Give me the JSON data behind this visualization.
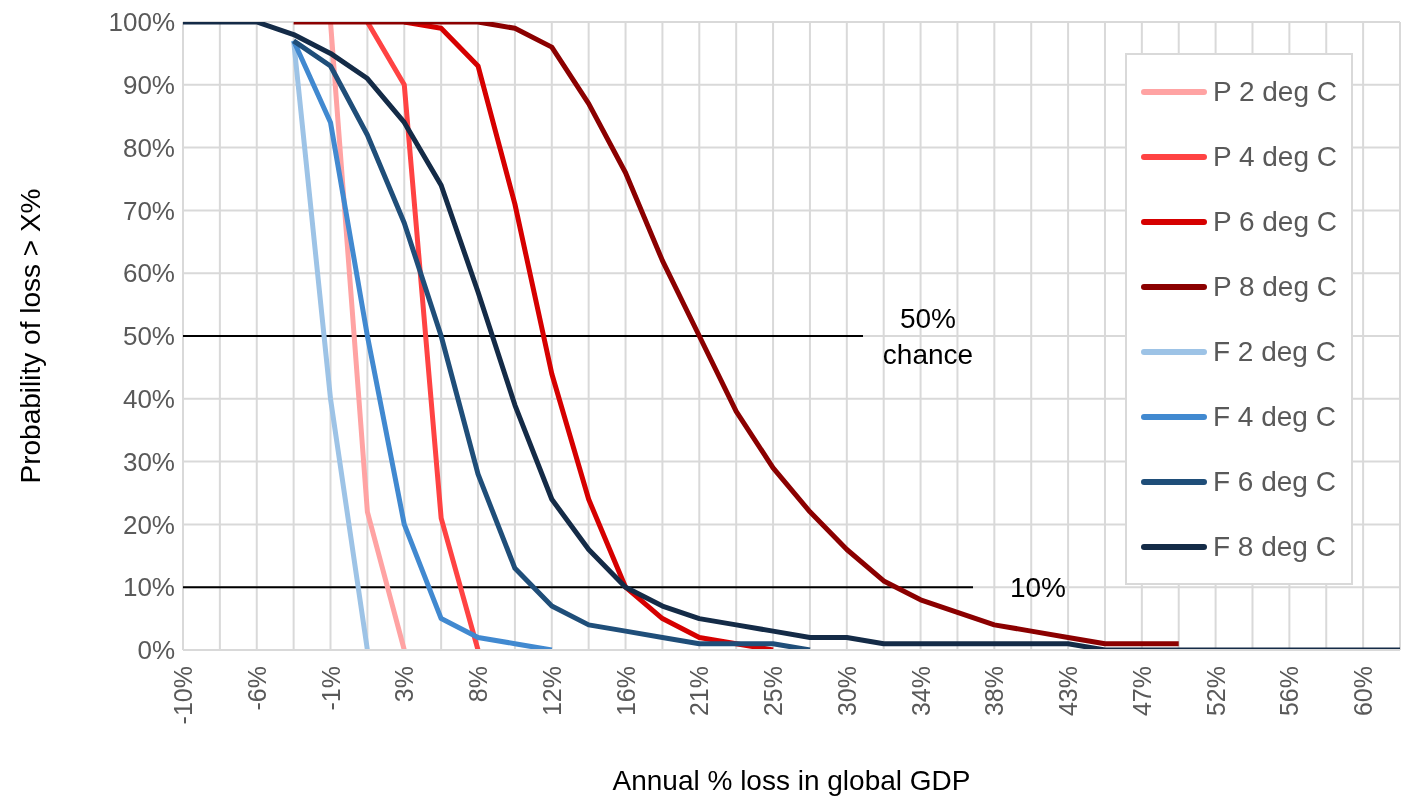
{
  "chart_data": {
    "type": "line",
    "xlabel": "Annual % loss in global GDP",
    "ylabel": "Probability of loss > X%",
    "categories": [
      "-10%",
      null,
      "-6%",
      null,
      "-1%",
      null,
      "3%",
      null,
      "8%",
      null,
      "12%",
      null,
      "16%",
      null,
      "21%",
      null,
      "25%",
      null,
      "30%",
      null,
      "34%",
      null,
      "38%",
      null,
      "43%",
      null,
      "47%",
      null,
      "52%",
      null,
      "56%",
      null,
      "60%",
      null
    ],
    "series": [
      {
        "name": "P 2 deg C",
        "color": "#ffa3a3",
        "values": [
          null,
          null,
          null,
          null,
          100,
          22,
          0,
          null,
          null,
          null,
          null,
          null,
          null,
          null,
          null,
          null,
          null,
          null,
          null,
          null,
          null,
          null,
          null,
          null,
          null,
          null,
          null,
          null,
          null,
          null,
          null,
          null,
          null,
          null
        ]
      },
      {
        "name": "P 4 deg C",
        "color": "#ff4343",
        "values": [
          null,
          null,
          null,
          null,
          null,
          100,
          90,
          21,
          0,
          null,
          null,
          null,
          null,
          null,
          null,
          null,
          null,
          null,
          null,
          null,
          null,
          null,
          null,
          null,
          null,
          null,
          null,
          null,
          null,
          null,
          null,
          null,
          null,
          null
        ]
      },
      {
        "name": "P 6 deg C",
        "color": "#d60000",
        "values": [
          null,
          null,
          null,
          null,
          null,
          null,
          100,
          99,
          93,
          71,
          44,
          24,
          10,
          5,
          2,
          1,
          0,
          null,
          null,
          null,
          null,
          null,
          null,
          null,
          null,
          null,
          null,
          null,
          null,
          null,
          null,
          null,
          null,
          null
        ]
      },
      {
        "name": "P 8 deg C",
        "color": "#8b0000",
        "values": [
          null,
          null,
          null,
          100,
          100,
          100,
          100,
          100,
          100,
          99,
          96,
          87,
          76,
          62,
          50,
          38,
          29,
          22,
          16,
          11,
          8,
          6,
          4,
          3,
          2,
          1,
          1,
          1,
          null,
          null,
          null,
          null,
          null,
          null
        ]
      },
      {
        "name": "F 2 deg C",
        "color": "#9dc3e6",
        "values": [
          null,
          null,
          null,
          97,
          40,
          0,
          null,
          null,
          null,
          null,
          null,
          null,
          null,
          null,
          null,
          null,
          null,
          null,
          null,
          null,
          null,
          null,
          null,
          null,
          null,
          null,
          null,
          null,
          null,
          null,
          null,
          null,
          null,
          null
        ]
      },
      {
        "name": "F 4 deg C",
        "color": "#4189d0",
        "values": [
          null,
          null,
          null,
          97,
          84,
          50,
          20,
          5,
          2,
          1,
          0,
          null,
          null,
          null,
          null,
          null,
          null,
          null,
          null,
          null,
          null,
          null,
          null,
          null,
          null,
          null,
          null,
          null,
          null,
          null,
          null,
          null,
          null,
          null
        ]
      },
      {
        "name": "F 6 deg C",
        "color": "#1f4e79",
        "values": [
          null,
          null,
          null,
          97,
          93,
          82,
          68,
          50,
          28,
          13,
          7,
          4,
          3,
          2,
          1,
          1,
          1,
          0,
          null,
          null,
          null,
          null,
          null,
          null,
          null,
          null,
          null,
          null,
          null,
          null,
          null,
          null,
          null,
          null
        ]
      },
      {
        "name": "F 8 deg C",
        "color": "#142b47",
        "values": [
          100,
          100,
          100,
          98,
          95,
          91,
          84,
          74,
          57,
          39,
          24,
          16,
          10,
          7,
          5,
          4,
          3,
          2,
          2,
          1,
          1,
          1,
          1,
          1,
          1,
          0,
          0,
          0,
          0,
          0,
          0,
          0,
          0,
          0
        ]
      }
    ],
    "ylim": [
      0,
      100
    ],
    "yticks": [
      {
        "value": 0,
        "label": "0%"
      },
      {
        "value": 10,
        "label": "10%"
      },
      {
        "value": 20,
        "label": "20%"
      },
      {
        "value": 30,
        "label": "30%"
      },
      {
        "value": 40,
        "label": "40%"
      },
      {
        "value": 50,
        "label": "50%"
      },
      {
        "value": 60,
        "label": "60%"
      },
      {
        "value": 70,
        "label": "70%"
      },
      {
        "value": 80,
        "label": "80%"
      },
      {
        "value": 90,
        "label": "90%"
      },
      {
        "value": 100,
        "label": "100%"
      }
    ],
    "ref_lines": [
      {
        "axis": "y",
        "value": 50,
        "label": "50% chance",
        "color": "#000000"
      },
      {
        "axis": "y",
        "value": 10,
        "label": "10%",
        "color": "#000000"
      }
    ],
    "grid": true,
    "legend": "top right",
    "marker": "none",
    "line_style": "solid"
  }
}
